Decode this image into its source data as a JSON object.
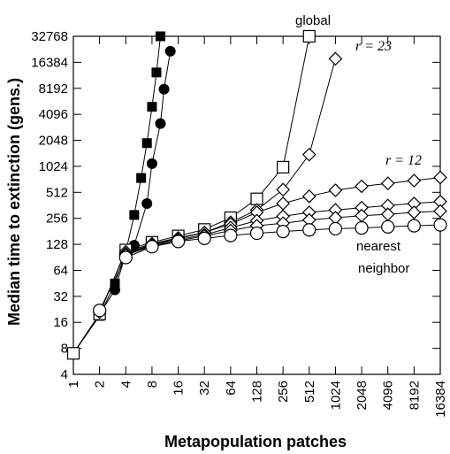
{
  "chart_data": {
    "type": "line",
    "title": "",
    "xlabel": "Metapopulation patches",
    "ylabel": "Median time to extinction (gens.)",
    "x_scale": "log2",
    "y_scale": "log2",
    "xlim": [
      1,
      16384
    ],
    "ylim": [
      4,
      32768
    ],
    "x_ticks": [
      "1",
      "2",
      "4",
      "8",
      "16",
      "32",
      "64",
      "128",
      "256",
      "512",
      "1024",
      "2048",
      "4096",
      "8192",
      "16384"
    ],
    "y_ticks": [
      "4",
      "8",
      "16",
      "32",
      "64",
      "128",
      "256",
      "512",
      "1024",
      "2048",
      "4096",
      "8192",
      "16384",
      "32768"
    ],
    "grid": false,
    "series": [
      {
        "marker": "filled-square",
        "points": [
          [
            1,
            7
          ],
          [
            2,
            19
          ],
          [
            3,
            45
          ],
          [
            4,
            105
          ],
          [
            5,
            280
          ],
          [
            6,
            750
          ],
          [
            7,
            1900
          ],
          [
            8,
            5000
          ],
          [
            9,
            12500
          ],
          [
            10,
            32768
          ]
        ]
      },
      {
        "marker": "filled-circle",
        "points": [
          [
            1,
            7
          ],
          [
            2,
            20
          ],
          [
            3,
            38
          ],
          [
            4,
            100
          ],
          [
            5,
            125
          ],
          [
            7,
            380
          ],
          [
            8,
            1100
          ],
          [
            10,
            3200
          ],
          [
            11,
            8000
          ],
          [
            13,
            22000
          ]
        ]
      },
      {
        "marker": "open-square",
        "points": [
          [
            1,
            7
          ],
          [
            2,
            20
          ],
          [
            4,
            110
          ],
          [
            8,
            135
          ],
          [
            16,
            160
          ],
          [
            32,
            190
          ],
          [
            64,
            260
          ],
          [
            128,
            430
          ],
          [
            256,
            1000
          ],
          [
            512,
            32768
          ]
        ]
      },
      {
        "marker": "open-diamond",
        "points": [
          [
            2,
            21
          ],
          [
            4,
            105
          ],
          [
            8,
            130
          ],
          [
            16,
            152
          ],
          [
            32,
            175
          ],
          [
            64,
            230
          ],
          [
            128,
            320
          ],
          [
            256,
            550
          ],
          [
            512,
            1400
          ],
          [
            1024,
            18000
          ]
        ]
      },
      {
        "marker": "open-diamond",
        "points": [
          [
            4,
            100
          ],
          [
            8,
            128
          ],
          [
            16,
            150
          ],
          [
            32,
            175
          ],
          [
            64,
            220
          ],
          [
            128,
            300
          ],
          [
            256,
            380
          ],
          [
            512,
            460
          ],
          [
            1024,
            540
          ],
          [
            2048,
            600
          ],
          [
            4096,
            650
          ],
          [
            8192,
            700
          ],
          [
            16384,
            760
          ]
        ]
      },
      {
        "marker": "open-diamond",
        "points": [
          [
            4,
            98
          ],
          [
            8,
            125
          ],
          [
            16,
            145
          ],
          [
            32,
            165
          ],
          [
            64,
            200
          ],
          [
            128,
            240
          ],
          [
            256,
            270
          ],
          [
            512,
            300
          ],
          [
            1024,
            320
          ],
          [
            2048,
            340
          ],
          [
            4096,
            360
          ],
          [
            8192,
            380
          ],
          [
            16384,
            400
          ]
        ]
      },
      {
        "marker": "open-diamond",
        "points": [
          [
            4,
            96
          ],
          [
            8,
            122
          ],
          [
            16,
            140
          ],
          [
            32,
            160
          ],
          [
            64,
            185
          ],
          [
            128,
            210
          ],
          [
            256,
            225
          ],
          [
            512,
            245
          ],
          [
            1024,
            260
          ],
          [
            2048,
            275
          ],
          [
            4096,
            285
          ],
          [
            8192,
            300
          ],
          [
            16384,
            310
          ]
        ]
      },
      {
        "marker": "open-circle",
        "points": [
          [
            2,
            22
          ],
          [
            4,
            90
          ],
          [
            8,
            120
          ],
          [
            16,
            138
          ],
          [
            32,
            150
          ],
          [
            64,
            162
          ],
          [
            128,
            172
          ],
          [
            256,
            180
          ],
          [
            512,
            188
          ],
          [
            1024,
            194
          ],
          [
            2048,
            198
          ],
          [
            4096,
            204
          ],
          [
            8192,
            210
          ],
          [
            16384,
            215
          ]
        ]
      }
    ],
    "annotations": {
      "global": "global",
      "r23": "r = 23",
      "r12": "r = 12",
      "nearest_line1": "nearest",
      "nearest_line2": "neighbor"
    }
  }
}
